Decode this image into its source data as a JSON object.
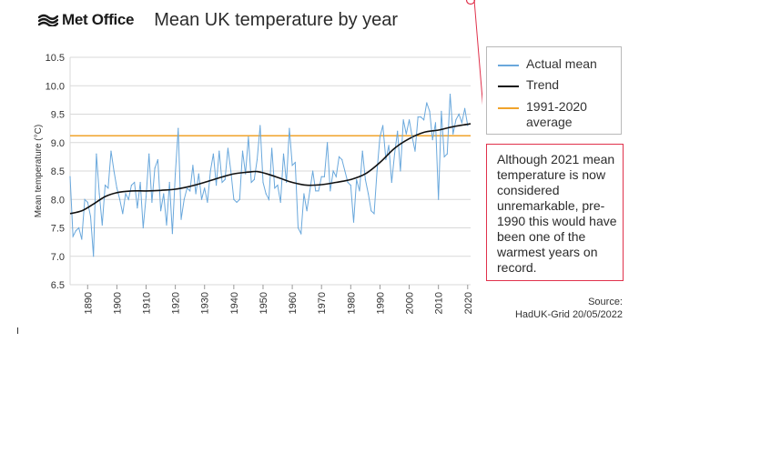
{
  "header": {
    "logo_text": "Met Office",
    "title": "Mean UK temperature by year"
  },
  "legend": {
    "items": [
      {
        "label": "Actual mean",
        "color": "#6aa8dc"
      },
      {
        "label": "Trend",
        "color": "#111111"
      },
      {
        "label": "1991-2020 average",
        "color": "#f0a32b"
      }
    ]
  },
  "annotation": {
    "text": "Although 2021 mean temperature is now considered unremarkable, pre-1990 this would have been one of the warmest years on record.",
    "border_color": "#e0314b",
    "highlight_year": 2021
  },
  "source": {
    "line1": "Source:",
    "line2": "HadUK-Grid 20/05/2022"
  },
  "chart_data": {
    "type": "line",
    "title": "Mean UK temperature by year",
    "xlabel": "",
    "ylabel": "Mean temperature (°C)",
    "xlim": [
      1884,
      2021
    ],
    "ylim": [
      6.5,
      10.5
    ],
    "xticks": [
      1890,
      1900,
      1910,
      1920,
      1930,
      1940,
      1950,
      1960,
      1970,
      1980,
      1990,
      2000,
      2010,
      2020
    ],
    "yticks": [
      "6.5",
      "7.0",
      "7.5",
      "8.0",
      "8.5",
      "9.0",
      "9.5",
      "10.0",
      "10.5"
    ],
    "grid": "horizontal",
    "legend_position": "right",
    "reference_line": {
      "name": "1991-2020 average",
      "value": 9.12
    },
    "series": [
      {
        "name": "Actual mean",
        "x_start": 1884,
        "values": [
          8.4,
          7.35,
          7.45,
          7.5,
          7.3,
          8.0,
          7.95,
          7.7,
          7.0,
          8.8,
          8.1,
          7.55,
          8.25,
          8.2,
          8.85,
          8.5,
          8.2,
          8.0,
          7.75,
          8.1,
          8.0,
          8.25,
          8.3,
          7.85,
          8.3,
          7.5,
          8.05,
          8.8,
          7.95,
          8.55,
          8.7,
          7.8,
          8.1,
          7.55,
          8.3,
          7.4,
          8.45,
          9.25,
          7.65,
          8.0,
          8.2,
          8.15,
          8.6,
          8.1,
          8.45,
          8.0,
          8.2,
          7.95,
          8.5,
          8.8,
          8.25,
          8.85,
          8.3,
          8.35,
          8.9,
          8.5,
          8.0,
          7.95,
          8.0,
          8.85,
          8.45,
          9.1,
          8.3,
          8.35,
          8.7,
          9.3,
          8.3,
          8.1,
          8.0,
          8.9,
          8.2,
          8.25,
          7.95,
          8.8,
          8.3,
          9.25,
          8.6,
          8.65,
          7.5,
          7.4,
          8.1,
          7.8,
          8.15,
          8.5,
          8.15,
          8.15,
          8.4,
          8.4,
          9.0,
          8.15,
          8.5,
          8.4,
          8.75,
          8.7,
          8.5,
          8.3,
          8.25,
          7.6,
          8.35,
          8.15,
          8.85,
          8.35,
          8.1,
          7.8,
          7.75,
          8.5,
          9.1,
          9.3,
          8.7,
          8.95,
          8.3,
          8.8,
          9.2,
          8.5,
          9.4,
          9.15,
          9.4,
          9.1,
          8.85,
          9.45,
          9.45,
          9.4,
          9.7,
          9.55,
          9.05,
          9.35,
          8.0,
          9.55,
          8.75,
          8.8,
          9.85,
          9.15,
          9.4,
          9.5,
          9.35,
          9.6,
          9.3
        ]
      },
      {
        "name": "Trend",
        "points": [
          [
            1884,
            7.75
          ],
          [
            1888,
            7.8
          ],
          [
            1892,
            7.92
          ],
          [
            1896,
            8.05
          ],
          [
            1900,
            8.12
          ],
          [
            1905,
            8.15
          ],
          [
            1910,
            8.15
          ],
          [
            1915,
            8.16
          ],
          [
            1920,
            8.18
          ],
          [
            1925,
            8.23
          ],
          [
            1930,
            8.3
          ],
          [
            1935,
            8.38
          ],
          [
            1940,
            8.45
          ],
          [
            1945,
            8.48
          ],
          [
            1948,
            8.49
          ],
          [
            1952,
            8.44
          ],
          [
            1956,
            8.37
          ],
          [
            1960,
            8.3
          ],
          [
            1965,
            8.25
          ],
          [
            1970,
            8.26
          ],
          [
            1975,
            8.3
          ],
          [
            1980,
            8.35
          ],
          [
            1985,
            8.45
          ],
          [
            1990,
            8.65
          ],
          [
            1995,
            8.9
          ],
          [
            2000,
            9.07
          ],
          [
            2005,
            9.18
          ],
          [
            2010,
            9.22
          ],
          [
            2015,
            9.28
          ],
          [
            2021,
            9.33
          ]
        ]
      }
    ]
  }
}
